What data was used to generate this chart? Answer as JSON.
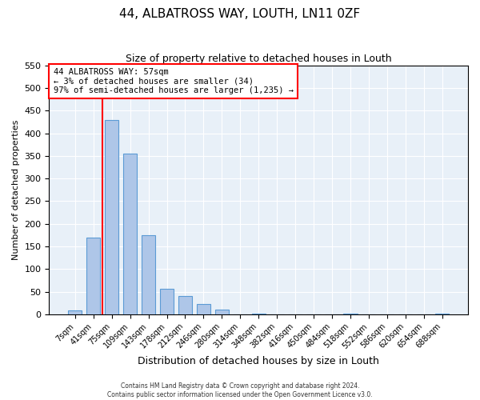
{
  "title": "44, ALBATROSS WAY, LOUTH, LN11 0ZF",
  "subtitle": "Size of property relative to detached houses in Louth",
  "xlabel": "Distribution of detached houses by size in Louth",
  "ylabel": "Number of detached properties",
  "bar_labels": [
    "7sqm",
    "41sqm",
    "75sqm",
    "109sqm",
    "143sqm",
    "178sqm",
    "212sqm",
    "246sqm",
    "280sqm",
    "314sqm",
    "348sqm",
    "382sqm",
    "416sqm",
    "450sqm",
    "484sqm",
    "518sqm",
    "552sqm",
    "586sqm",
    "620sqm",
    "654sqm",
    "688sqm"
  ],
  "bar_values": [
    8,
    170,
    430,
    355,
    175,
    57,
    40,
    22,
    10,
    0,
    1,
    0,
    0,
    0,
    0,
    1,
    0,
    0,
    0,
    0,
    1
  ],
  "bar_color": "#aec6e8",
  "bar_edge_color": "#5b9bd5",
  "property_line_x": 1.5,
  "property_line_color": "red",
  "annotation_text": "44 ALBATROSS WAY: 57sqm\n← 3% of detached houses are smaller (34)\n97% of semi-detached houses are larger (1,235) →",
  "annotation_box_color": "white",
  "annotation_box_edge": "red",
  "ylim": [
    0,
    550
  ],
  "yticks": [
    0,
    50,
    100,
    150,
    200,
    250,
    300,
    350,
    400,
    450,
    500,
    550
  ],
  "bg_color": "#e8f0f8",
  "footer_line1": "Contains HM Land Registry data © Crown copyright and database right 2024.",
  "footer_line2": "Contains public sector information licensed under the Open Government Licence v3.0."
}
